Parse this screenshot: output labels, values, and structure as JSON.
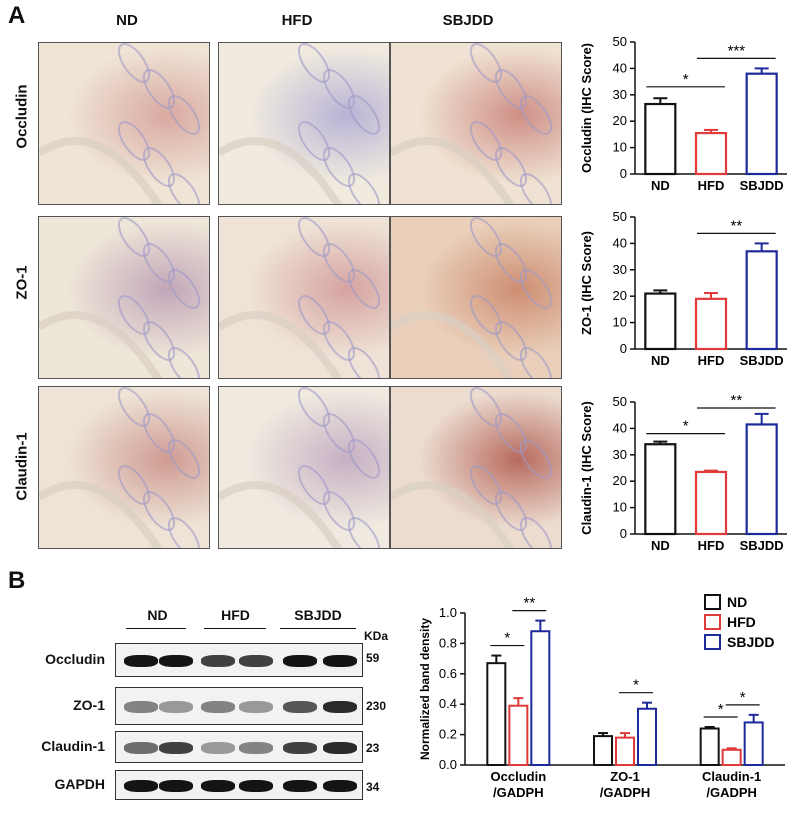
{
  "panel_a": {
    "letter": "A",
    "col_headers": [
      "ND",
      "HFD",
      "SBJDD"
    ],
    "row_labels": [
      "Occludin",
      "ZO-1",
      "Claudin-1"
    ]
  },
  "panel_b": {
    "letter": "B",
    "wb_groups": [
      "ND",
      "HFD",
      "SBJDD"
    ],
    "wb_unit": "KDa",
    "wb_rows": [
      {
        "label": "Occludin",
        "kda": "59"
      },
      {
        "label": "ZO-1",
        "kda": "230"
      },
      {
        "label": "Claudin-1",
        "kda": "23"
      },
      {
        "label": "GAPDH",
        "kda": "34"
      }
    ]
  },
  "colors": {
    "ND": "#111111",
    "HFD": "#e03a3a",
    "SBJDD": "#1e2a9c"
  },
  "chart_data": [
    {
      "type": "bar",
      "categories": [
        "ND",
        "HFD",
        "SBJDD"
      ],
      "values": [
        26.5,
        15.5,
        38
      ],
      "errors": [
        2.2,
        1.2,
        2.0
      ],
      "ylabel": "Occludin (IHC Score)",
      "ylim": [
        0,
        50
      ],
      "yticks": [
        0,
        10,
        20,
        30,
        40,
        50
      ],
      "significance": [
        {
          "from": 0,
          "to": 1,
          "label": "*"
        },
        {
          "from": 1,
          "to": 2,
          "label": "***"
        }
      ]
    },
    {
      "type": "bar",
      "categories": [
        "ND",
        "HFD",
        "SBJDD"
      ],
      "values": [
        21,
        19,
        37
      ],
      "errors": [
        1.2,
        2.2,
        3.0
      ],
      "ylabel": "ZO-1 (IHC Score)",
      "ylim": [
        0,
        50
      ],
      "yticks": [
        0,
        10,
        20,
        30,
        40,
        50
      ],
      "significance": [
        {
          "from": 1,
          "to": 2,
          "label": "**"
        }
      ]
    },
    {
      "type": "bar",
      "categories": [
        "ND",
        "HFD",
        "SBJDD"
      ],
      "values": [
        34,
        23.5,
        41.5
      ],
      "errors": [
        1.0,
        0.5,
        4.0
      ],
      "ylabel": "Claudin-1 (IHC Score)",
      "ylim": [
        0,
        50
      ],
      "yticks": [
        0,
        10,
        20,
        30,
        40,
        50
      ],
      "significance": [
        {
          "from": 0,
          "to": 1,
          "label": "*"
        },
        {
          "from": 1,
          "to": 2,
          "label": "**"
        }
      ]
    },
    {
      "type": "bar",
      "categories": [
        "Occludin\n/GADPH",
        "ZO-1\n/GADPH",
        "Claudin-1\n/GADPH"
      ],
      "series": [
        {
          "name": "ND",
          "values": [
            0.67,
            0.19,
            0.24
          ],
          "errors": [
            0.05,
            0.02,
            0.01
          ]
        },
        {
          "name": "HFD",
          "values": [
            0.39,
            0.18,
            0.1
          ],
          "errors": [
            0.05,
            0.03,
            0.01
          ]
        },
        {
          "name": "SBJDD",
          "values": [
            0.88,
            0.37,
            0.28
          ],
          "errors": [
            0.07,
            0.04,
            0.05
          ]
        }
      ],
      "ylabel": "Normalized band density",
      "ylim": [
        0,
        1.0
      ],
      "yticks": [
        "0.0",
        "0.2",
        "0.4",
        "0.6",
        "0.8",
        "1.0"
      ],
      "legend": "top-right",
      "significance": [
        {
          "group": 0,
          "from": 0,
          "to": 1,
          "label": "*"
        },
        {
          "group": 0,
          "from": 1,
          "to": 2,
          "label": "**"
        },
        {
          "group": 1,
          "from": 1,
          "to": 2,
          "label": "*"
        },
        {
          "group": 2,
          "from": 0,
          "to": 1,
          "label": "*"
        },
        {
          "group": 2,
          "from": 1,
          "to": 2,
          "label": "*"
        }
      ]
    }
  ]
}
